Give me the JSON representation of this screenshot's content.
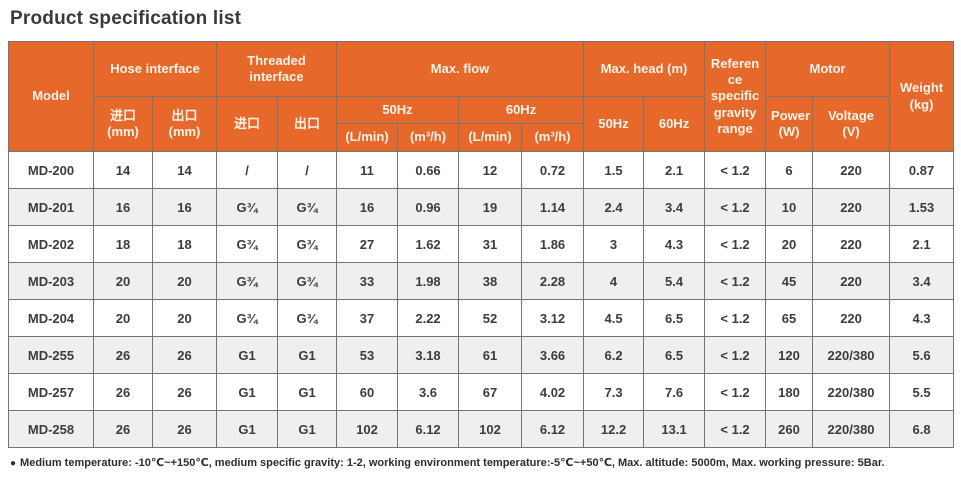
{
  "page": {
    "title": "Product specification list"
  },
  "table": {
    "header": {
      "model": "Model",
      "hose_interface": "Hose interface",
      "threaded_interface": "Threaded interface",
      "max_flow": "Max. flow",
      "max_head": "Max. head (m)",
      "ref_gravity": "Reference specific gravity range",
      "motor": "Motor",
      "weight": "Weight (kg)",
      "hose_inlet": "进口 (mm)",
      "hose_outlet": "出口 (mm)",
      "thread_inlet": "进口",
      "thread_outlet": "出口",
      "flow_hz50": "50Hz",
      "flow_hz60": "60Hz",
      "head_hz50": "50Hz",
      "head_hz60": "60Hz",
      "flow_units": [
        "(L/min)",
        "(m³/h)",
        "(L/min)",
        "(m³/h)"
      ],
      "power": "Power (W)",
      "voltage": "Voltage (V)"
    },
    "rows": [
      [
        "MD-200",
        "14",
        "14",
        "/",
        "/",
        "11",
        "0.66",
        "12",
        "0.72",
        "1.5",
        "2.1",
        "< 1.2",
        "6",
        "220",
        "0.87"
      ],
      [
        "MD-201",
        "16",
        "16",
        "G¾",
        "G¾",
        "16",
        "0.96",
        "19",
        "1.14",
        "2.4",
        "3.4",
        "< 1.2",
        "10",
        "220",
        "1.53"
      ],
      [
        "MD-202",
        "18",
        "18",
        "G¾",
        "G¾",
        "27",
        "1.62",
        "31",
        "1.86",
        "3",
        "4.3",
        "< 1.2",
        "20",
        "220",
        "2.1"
      ],
      [
        "MD-203",
        "20",
        "20",
        "G¾",
        "G¾",
        "33",
        "1.98",
        "38",
        "2.28",
        "4",
        "5.4",
        "< 1.2",
        "45",
        "220",
        "3.4"
      ],
      [
        "MD-204",
        "20",
        "20",
        "G¾",
        "G¾",
        "37",
        "2.22",
        "52",
        "3.12",
        "4.5",
        "6.5",
        "< 1.2",
        "65",
        "220",
        "4.3"
      ],
      [
        "MD-255",
        "26",
        "26",
        "G1",
        "G1",
        "53",
        "3.18",
        "61",
        "3.66",
        "6.2",
        "6.5",
        "< 1.2",
        "120",
        "220/380",
        "5.6"
      ],
      [
        "MD-257",
        "26",
        "26",
        "G1",
        "G1",
        "60",
        "3.6",
        "67",
        "4.02",
        "7.3",
        "7.6",
        "< 1.2",
        "180",
        "220/380",
        "5.5"
      ],
      [
        "MD-258",
        "26",
        "26",
        "G1",
        "G1",
        "102",
        "6.12",
        "102",
        "6.12",
        "12.2",
        "13.1",
        "< 1.2",
        "260",
        "220/380",
        "6.8"
      ]
    ]
  },
  "footnote": {
    "bullet": "●",
    "text": "Medium temperature: -10℃~+150℃, medium specific gravity: 1-2, working environment temperature:-5℃~+50℃, Max. altitude: 5000m, Max. working pressure: 5Bar."
  },
  "colors": {
    "header_orange": "#e6692b",
    "header_text": "#fcf2e7",
    "row_alt": "#efefef",
    "body_text": "#3c3c3c",
    "border": "#757575"
  }
}
